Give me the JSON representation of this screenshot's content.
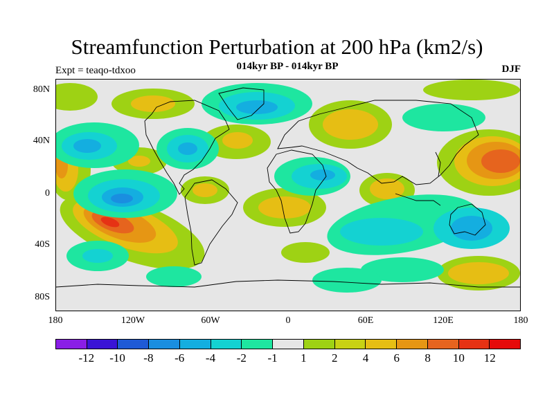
{
  "header": {
    "title": "Streamfunction Perturbation at 200 hPa (km2/s)",
    "subtitle": "014kyr BP - 014kyr BP",
    "experiment": "Expt = teaqo-tdxoo",
    "season": "DJF"
  },
  "map": {
    "projection": "cylindrical equidistant",
    "lat_labels": [
      "80N",
      "40N",
      "0",
      "40S",
      "80S"
    ],
    "lon_labels": [
      "180",
      "120W",
      "60W",
      "0",
      "60E",
      "120E",
      "180"
    ]
  },
  "colorbar": {
    "labels": [
      "-12",
      "-10",
      "-8",
      "-6",
      "-4",
      "-2",
      "-1",
      "1",
      "2",
      "4",
      "6",
      "8",
      "10",
      "12"
    ],
    "colors": [
      "#8a1ee6",
      "#3a14d6",
      "#1e5ad6",
      "#1a8ee0",
      "#14aee0",
      "#14d2d2",
      "#1ee6a0",
      "#e6e6e6",
      "#9ed214",
      "#c8d214",
      "#e6be14",
      "#e69614",
      "#e6641e",
      "#e63214",
      "#e60a0a"
    ]
  }
}
